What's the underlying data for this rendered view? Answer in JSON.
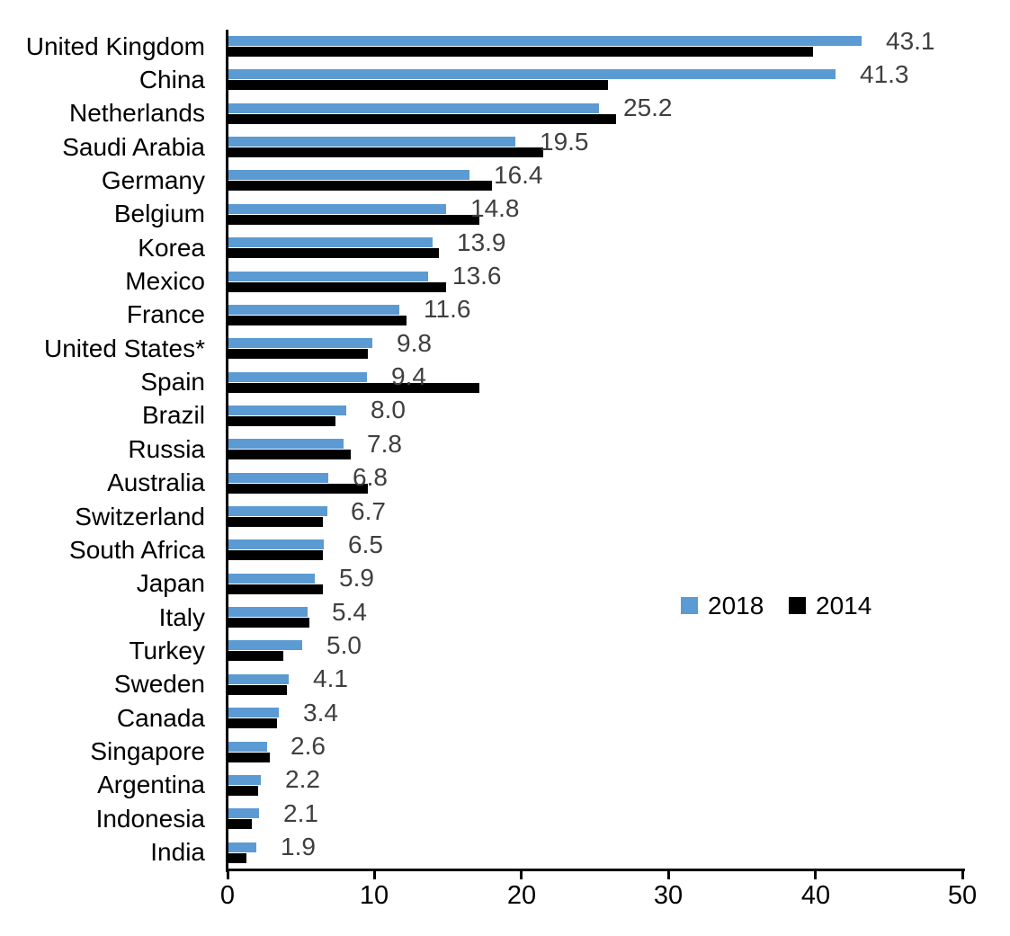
{
  "chart_data": {
    "type": "bar",
    "orientation": "horizontal",
    "title": "",
    "xlabel": "",
    "ylabel": "",
    "xlim": [
      0,
      50
    ],
    "x_ticks": [
      0,
      10,
      20,
      30,
      40,
      50
    ],
    "grid": false,
    "legend_position": "middle-right",
    "categories": [
      "United Kingdom",
      "China",
      "Netherlands",
      "Saudi Arabia",
      "Germany",
      "Belgium",
      "Korea",
      "Mexico",
      "France",
      "United States*",
      "Spain",
      "Brazil",
      "Russia",
      "Australia",
      "Switzerland",
      "South Africa",
      "Japan",
      "Italy",
      "Turkey",
      "Sweden",
      "Canada",
      "Singapore",
      "Argentina",
      "Indonesia",
      "India"
    ],
    "series": [
      {
        "name": "2018",
        "color": "#5B9AD2",
        "data_labels_visible": true,
        "values": [
          43.1,
          41.3,
          25.2,
          19.5,
          16.4,
          14.8,
          13.9,
          13.6,
          11.6,
          9.8,
          9.4,
          8.0,
          7.8,
          6.8,
          6.7,
          6.5,
          5.9,
          5.4,
          5.0,
          4.1,
          3.4,
          2.6,
          2.2,
          2.1,
          1.9
        ]
      },
      {
        "name": "2014",
        "color": "#000000",
        "data_labels_visible": false,
        "values": [
          39.8,
          25.8,
          26.4,
          21.4,
          17.9,
          17.1,
          14.3,
          14.8,
          12.1,
          9.5,
          17.1,
          7.3,
          8.3,
          9.5,
          6.4,
          6.4,
          6.4,
          5.5,
          3.7,
          4.0,
          3.3,
          2.8,
          2.0,
          1.6,
          1.2
        ]
      }
    ],
    "value_label_color": "#3F3F3F",
    "axis_color": "#000000"
  }
}
